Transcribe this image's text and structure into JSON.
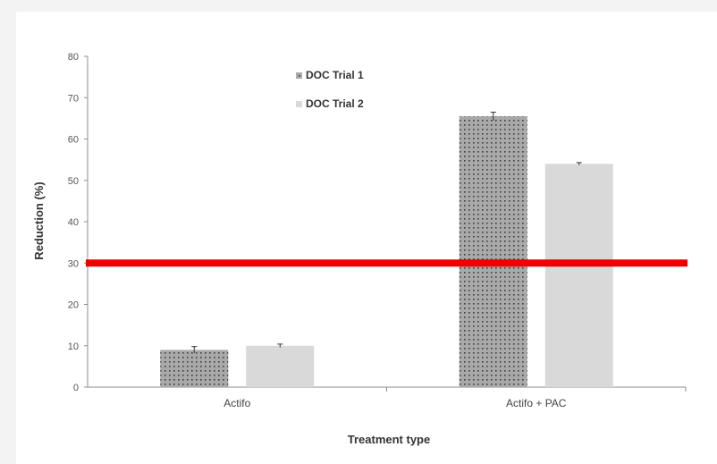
{
  "chart_data": {
    "type": "bar",
    "categories": [
      "Actifo",
      "Actifo + PAC"
    ],
    "series": [
      {
        "name": "DOC Trial 1",
        "values": [
          9,
          65.5
        ],
        "errors": [
          0.8,
          1.0
        ],
        "color": "#a8a8a8",
        "pattern": "dotted"
      },
      {
        "name": "DOC Trial 2",
        "values": [
          10,
          54
        ],
        "errors": [
          0.4,
          0.3
        ],
        "color": "#d9d9d9",
        "pattern": "solid"
      }
    ],
    "xlabel": "Treatment type",
    "ylabel": "Reduction (%)",
    "ylim": [
      0,
      80
    ],
    "yticks": [
      0,
      10,
      20,
      30,
      40,
      50,
      60,
      70,
      80
    ],
    "reference_line": {
      "value": 30,
      "color": "#ee0000"
    },
    "legend_position": "top-left",
    "grid": false
  }
}
